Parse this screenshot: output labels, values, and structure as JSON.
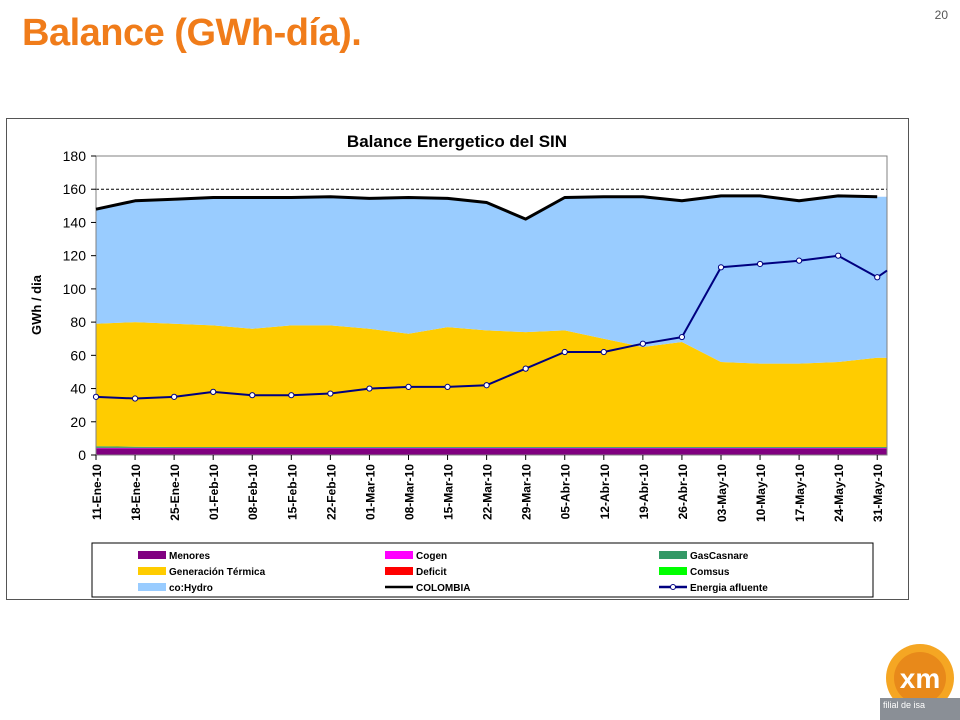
{
  "slide": {
    "title": "Balance (GWh-día).",
    "page_number": "20"
  },
  "logo": {
    "text": "xm",
    "tagline": "filial de isa"
  },
  "colors": {
    "title_orange": "#f07c1a",
    "hydro": "#99ccff",
    "thermal": "#ffcc00",
    "menores": "#800080",
    "cogen": "#ff00ff",
    "gascasnare": "#339966",
    "deficit": "#ff0000",
    "comsus": "#00ff00",
    "colombia": "#000000",
    "afluente": "#000080"
  },
  "chart_data": {
    "type": "area",
    "title": "Balance Energetico del SIN",
    "ylabel": "GWh / dia",
    "ylim": [
      0,
      180
    ],
    "yticks": [
      0,
      20,
      40,
      60,
      80,
      100,
      120,
      140,
      160,
      180
    ],
    "reference_line": 160,
    "grid": false,
    "legend_position": "bottom",
    "categories": [
      "11-Ene-10",
      "18-Ene-10",
      "25-Ene-10",
      "01-Feb-10",
      "08-Feb-10",
      "15-Feb-10",
      "22-Feb-10",
      "01-Mar-10",
      "08-Mar-10",
      "15-Mar-10",
      "22-Mar-10",
      "29-Mar-10",
      "05-Abr-10",
      "12-Abr-10",
      "19-Abr-10",
      "26-Abr-10",
      "03-May-10",
      "10-May-10",
      "17-May-10",
      "24-May-10",
      "31-May-10"
    ],
    "stacked_series": [
      {
        "name": "Menores",
        "color": "#800080",
        "values": [
          4,
          4,
          4,
          4,
          4,
          4,
          4,
          4,
          4,
          4,
          4,
          4,
          4,
          4,
          4,
          4,
          4,
          4,
          4,
          4,
          4
        ]
      },
      {
        "name": "Cogen",
        "color": "#ff00ff",
        "values": [
          0.3,
          0.3,
          0.3,
          0.3,
          0.3,
          0.3,
          0.3,
          0.3,
          0.3,
          0.3,
          0.3,
          0.3,
          0.3,
          0.3,
          0.3,
          0.3,
          0.3,
          0.3,
          0.3,
          0.3,
          0.3
        ]
      },
      {
        "name": "GasCasnare",
        "color": "#339966",
        "values": [
          1,
          0.7,
          0.5,
          0.5,
          0.5,
          0.5,
          0.5,
          0.5,
          0.5,
          0.5,
          0.5,
          0.5,
          0.5,
          0.5,
          0.5,
          0.5,
          0.5,
          0.5,
          0.5,
          0.5,
          0.5
        ]
      },
      {
        "name": "Generación Térmica",
        "color": "#ffcc00",
        "values": [
          73.7,
          75,
          74.2,
          73.2,
          71.2,
          73.2,
          73.2,
          71.2,
          68.2,
          72.2,
          70.2,
          69.2,
          70.2,
          65.2,
          60.2,
          63.2,
          51.2,
          50.2,
          50.2,
          51.2,
          53.7
        ]
      },
      {
        "name": "Deficit",
        "color": "#ff0000",
        "values": [
          0,
          0,
          0,
          0,
          0,
          0,
          0,
          0,
          0,
          0,
          0,
          0,
          0,
          0,
          0,
          0,
          0,
          0,
          0,
          0,
          0
        ]
      },
      {
        "name": "Comsus",
        "color": "#00ff00",
        "values": [
          0,
          0,
          0,
          0,
          0,
          0,
          0,
          0,
          0,
          0,
          0,
          0,
          0,
          0,
          0,
          0,
          0,
          0,
          0,
          0,
          0
        ]
      },
      {
        "name": "co:Hydro",
        "color": "#99ccff",
        "values": [
          69,
          73,
          74,
          77,
          79,
          77,
          77.5,
          78.5,
          82,
          77.5,
          77,
          67,
          80,
          85.5,
          90.5,
          85,
          100,
          101,
          98,
          100,
          97
        ]
      }
    ],
    "line_series": [
      {
        "name": "COLOMBIA",
        "color": "#000000",
        "values": [
          148,
          153,
          154,
          155,
          155,
          155,
          155.5,
          154.5,
          155,
          154.5,
          152,
          142,
          155,
          155.5,
          155.5,
          153,
          156,
          156,
          153,
          156,
          155.5
        ]
      },
      {
        "name": "Energia afluente",
        "color": "#000080",
        "markers": true,
        "values": [
          35,
          34,
          35,
          38,
          36,
          36,
          37,
          40,
          41,
          41,
          42,
          52,
          62,
          62,
          67,
          71,
          113,
          115,
          117,
          120,
          107
        ]
      }
    ],
    "extra_end_point": {
      "series": "Energia afluente",
      "value": 111
    },
    "legend": [
      [
        "Menores",
        "Cogen",
        "GasCasnare"
      ],
      [
        "Generación Térmica",
        "Deficit",
        "Comsus"
      ],
      [
        "co:Hydro",
        "COLOMBIA",
        "Energia afluente"
      ]
    ]
  }
}
